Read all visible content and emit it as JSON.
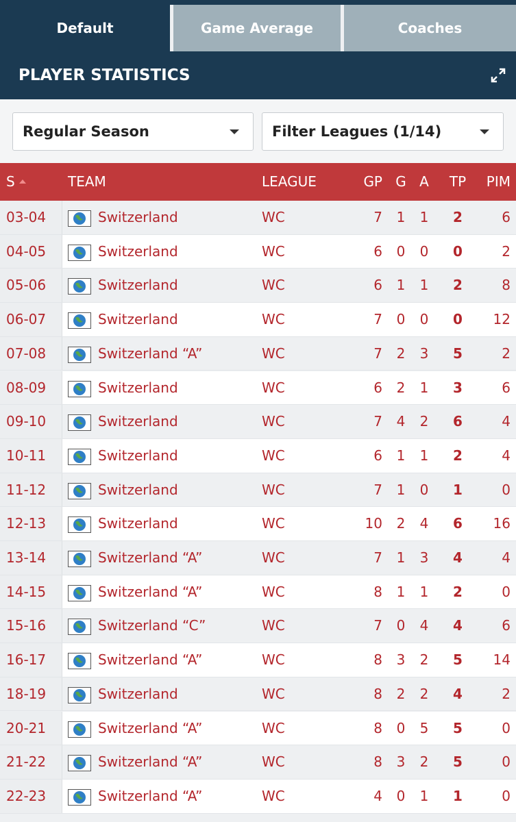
{
  "tabs": [
    "Default",
    "Game Average",
    "Coaches"
  ],
  "header": {
    "title": "PLAYER STATISTICS"
  },
  "filters": [
    "Regular Season",
    "Filter Leagues (1/14)"
  ],
  "table": {
    "columns": [
      "S",
      "TEAM",
      "LEAGUE",
      "GP",
      "G",
      "A",
      "TP",
      "PIM"
    ],
    "rows": [
      [
        "03-04",
        "Switzerland",
        "WC",
        7,
        1,
        1,
        2,
        6
      ],
      [
        "04-05",
        "Switzerland",
        "WC",
        6,
        0,
        0,
        0,
        2
      ],
      [
        "05-06",
        "Switzerland",
        "WC",
        6,
        1,
        1,
        2,
        8
      ],
      [
        "06-07",
        "Switzerland",
        "WC",
        7,
        0,
        0,
        0,
        12
      ],
      [
        "07-08",
        "Switzerland “A”",
        "WC",
        7,
        2,
        3,
        5,
        2
      ],
      [
        "08-09",
        "Switzerland",
        "WC",
        6,
        2,
        1,
        3,
        6
      ],
      [
        "09-10",
        "Switzerland",
        "WC",
        7,
        4,
        2,
        6,
        4
      ],
      [
        "10-11",
        "Switzerland",
        "WC",
        6,
        1,
        1,
        2,
        4
      ],
      [
        "11-12",
        "Switzerland",
        "WC",
        7,
        1,
        0,
        1,
        0
      ],
      [
        "12-13",
        "Switzerland",
        "WC",
        10,
        2,
        4,
        6,
        16
      ],
      [
        "13-14",
        "Switzerland “A”",
        "WC",
        7,
        1,
        3,
        4,
        4
      ],
      [
        "14-15",
        "Switzerland “A”",
        "WC",
        8,
        1,
        1,
        2,
        0
      ],
      [
        "15-16",
        "Switzerland “C”",
        "WC",
        7,
        0,
        4,
        4,
        6
      ],
      [
        "16-17",
        "Switzerland “A”",
        "WC",
        8,
        3,
        2,
        5,
        14
      ],
      [
        "18-19",
        "Switzerland",
        "WC",
        8,
        2,
        2,
        4,
        2
      ],
      [
        "20-21",
        "Switzerland “A”",
        "WC",
        8,
        0,
        5,
        5,
        0
      ],
      [
        "21-22",
        "Switzerland “A”",
        "WC",
        8,
        3,
        2,
        5,
        0
      ],
      [
        "22-23",
        "Switzerland “A”",
        "WC",
        4,
        0,
        1,
        1,
        0
      ]
    ]
  }
}
